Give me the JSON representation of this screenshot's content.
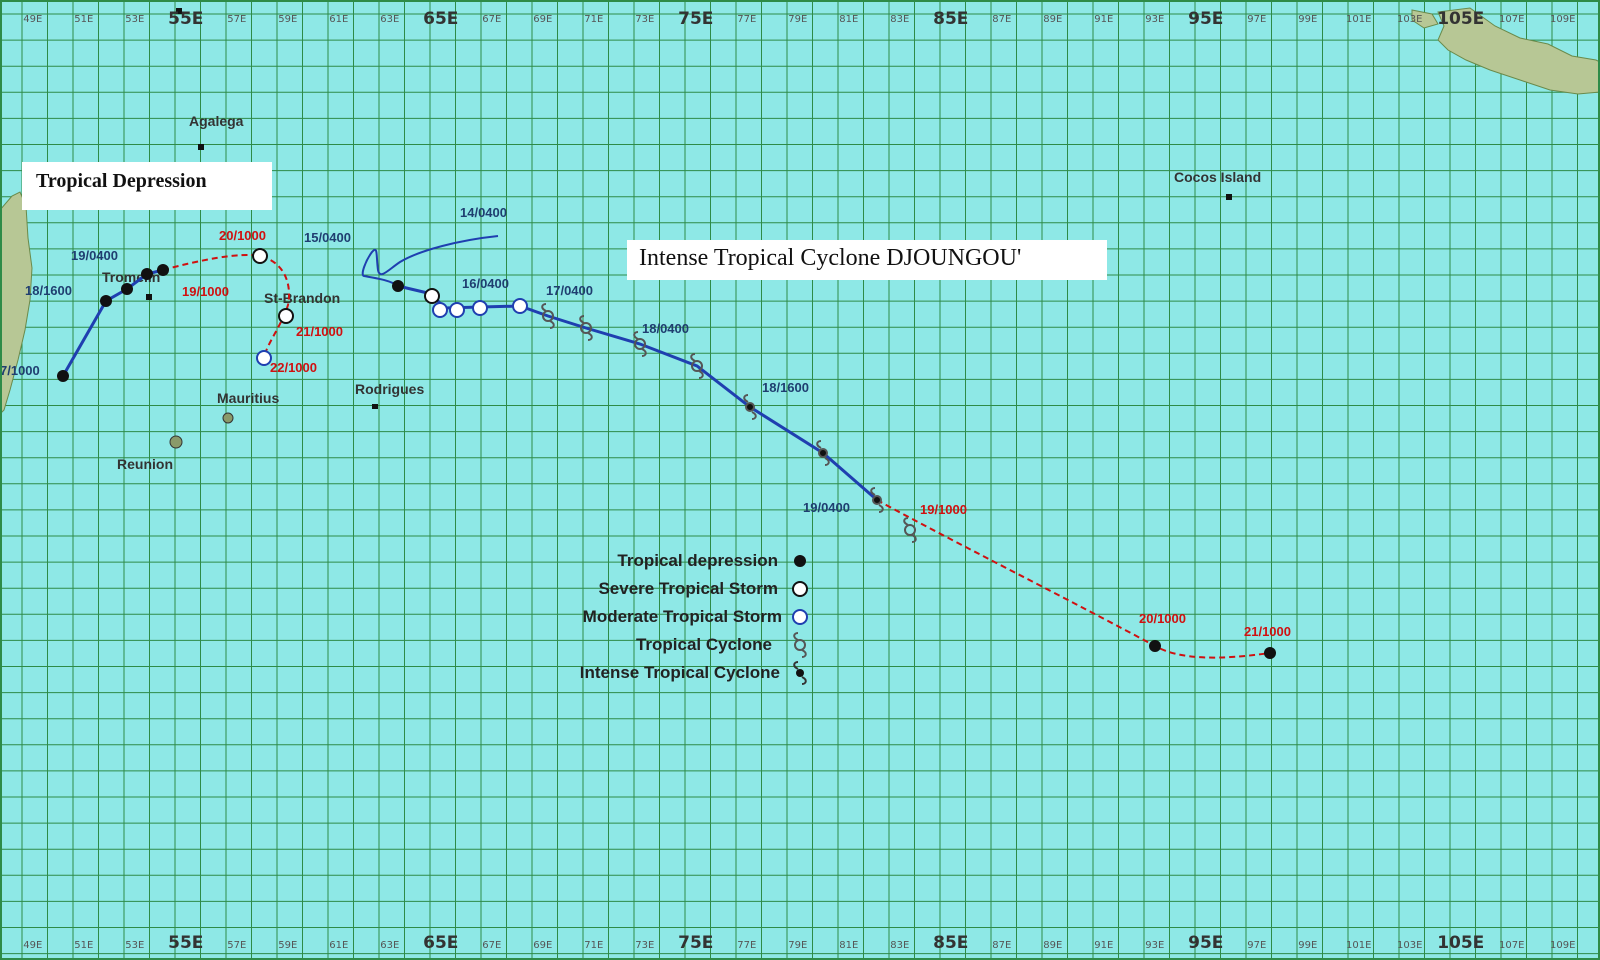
{
  "colors": {
    "ocean": "#8ee8e6",
    "grid": "#2e8b48",
    "land": "#b7c795",
    "track_observed": "#1f3fb0",
    "track_forecast": "#d01010",
    "label_blue": "#1f3e70",
    "label_red": "#d01010"
  },
  "titles": {
    "tropical_depression": "Tropical Depression",
    "intense_tropical_cyclone": "Intense Tropical Cyclone DJOUNGOU'"
  },
  "longitude_labels": {
    "minor": [
      "49E",
      "51E",
      "53E",
      "55E",
      "57E",
      "59E",
      "61E",
      "63E",
      "65E",
      "67E",
      "69E",
      "71E",
      "73E",
      "75E",
      "77E",
      "79E",
      "81E",
      "83E",
      "85E",
      "87E",
      "89E",
      "91E",
      "93E",
      "95E",
      "97E",
      "99E",
      "101E",
      "103E",
      "105E",
      "107E",
      "109E"
    ],
    "major_top": [
      "55E",
      "65E",
      "75E",
      "85E",
      "95E",
      "105E"
    ],
    "major_bottom": [
      "55E",
      "65E",
      "75E",
      "85E",
      "95E",
      "105E"
    ]
  },
  "places": [
    {
      "id": "agalega",
      "name": "Agalega"
    },
    {
      "id": "tromelin",
      "name": "Tromelin"
    },
    {
      "id": "st-brandon",
      "name": "St-Brandon"
    },
    {
      "id": "mauritius",
      "name": "Mauritius"
    },
    {
      "id": "reunion",
      "name": "Reunion"
    },
    {
      "id": "rodrigues",
      "name": "Rodrigues"
    },
    {
      "id": "cocos",
      "name": "Cocos Island"
    }
  ],
  "track_labels": {
    "blue": [
      "14/0400",
      "15/0400",
      "16/0400",
      "17/0400",
      "18/0400",
      "18/1600",
      "19/0400",
      "19/0400",
      "18/1600",
      "7/1000"
    ],
    "red": [
      "20/1000",
      "19/1000",
      "21/1000",
      "22/1000",
      "19/1000",
      "20/1000",
      "21/1000"
    ]
  },
  "legend": [
    {
      "label": "Tropical depression",
      "symbol": "filled-dot"
    },
    {
      "label": "Severe Tropical Storm",
      "symbol": "open-circle-black"
    },
    {
      "label": "Moderate Tropical Storm",
      "symbol": "open-circle-blue"
    },
    {
      "label": "Tropical Cyclone",
      "symbol": "cyclone-open"
    },
    {
      "label": "Intense Tropical Cyclone",
      "symbol": "cyclone-filled"
    }
  ]
}
